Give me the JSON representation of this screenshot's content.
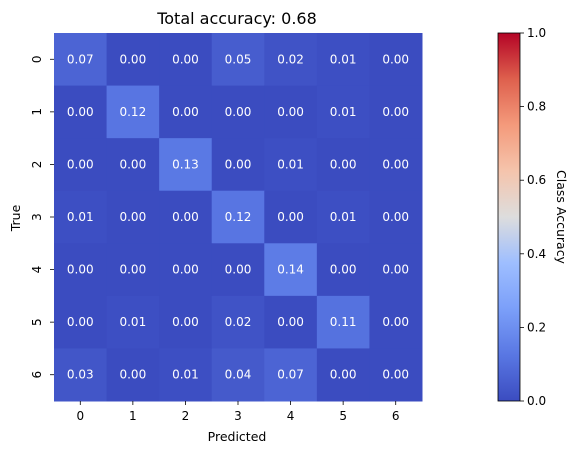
{
  "chart_data": {
    "type": "heatmap",
    "title": "Total accuracy: 0.68",
    "xlabel": "Predicted",
    "ylabel": "True",
    "x_categories": [
      "0",
      "1",
      "2",
      "3",
      "4",
      "5",
      "6"
    ],
    "y_categories": [
      "0",
      "1",
      "2",
      "3",
      "4",
      "5",
      "6"
    ],
    "values": [
      [
        0.07,
        0.0,
        0.0,
        0.05,
        0.02,
        0.01,
        0.0
      ],
      [
        0.0,
        0.12,
        0.0,
        0.0,
        0.0,
        0.01,
        0.0
      ],
      [
        0.0,
        0.0,
        0.13,
        0.0,
        0.01,
        0.0,
        0.0
      ],
      [
        0.01,
        0.0,
        0.0,
        0.12,
        0.0,
        0.01,
        0.0
      ],
      [
        0.0,
        0.0,
        0.0,
        0.0,
        0.14,
        0.0,
        0.0
      ],
      [
        0.0,
        0.01,
        0.0,
        0.02,
        0.0,
        0.11,
        0.0
      ],
      [
        0.03,
        0.0,
        0.01,
        0.04,
        0.07,
        0.0,
        0.0
      ]
    ],
    "value_format": "2 decimals",
    "colormap": "coolwarm",
    "colorbar": {
      "label": "Class Accuracy",
      "range": [
        0.0,
        1.0
      ],
      "ticks": [
        "0.0",
        "0.2",
        "0.4",
        "0.6",
        "0.8",
        "1.0"
      ]
    },
    "grid": false
  }
}
